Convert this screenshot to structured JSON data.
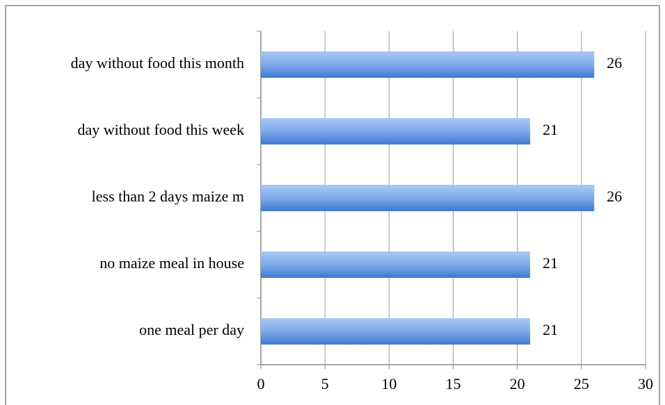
{
  "chart_data": {
    "type": "bar",
    "orientation": "horizontal",
    "categories": [
      "day without food this month",
      "day without food this week",
      "less than 2 days maize m",
      "no maize meal in house",
      "one meal per day"
    ],
    "values": [
      26,
      21,
      26,
      21,
      21
    ],
    "color": "#5b93df",
    "xlim": [
      0,
      30
    ],
    "xticks": [
      0,
      5,
      10,
      15,
      20,
      25,
      30
    ],
    "grid": true
  }
}
